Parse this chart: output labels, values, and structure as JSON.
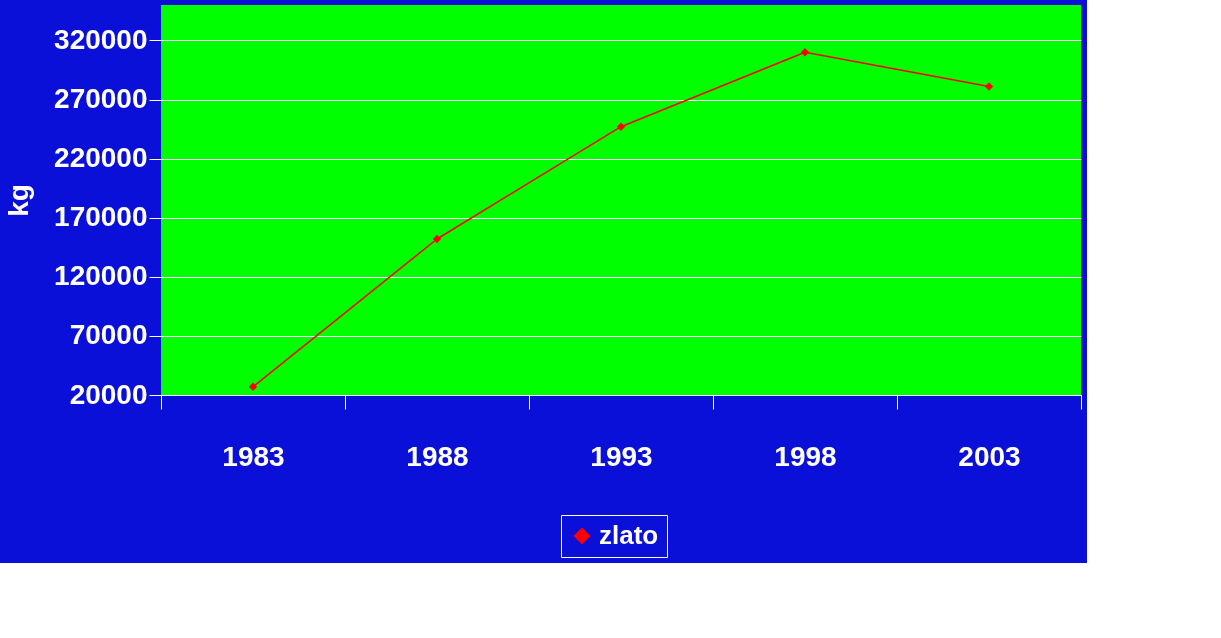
{
  "chart_data": {
    "type": "line",
    "ylabel": "kg",
    "categories": [
      "1983",
      "1988",
      "1993",
      "1998",
      "2003"
    ],
    "series": [
      {
        "name": "zlato",
        "color": "#ff0000",
        "values": [
          27000,
          152000,
          247000,
          310000,
          281000
        ]
      }
    ],
    "ylim": [
      20000,
      350000
    ],
    "yticks": [
      20000,
      70000,
      120000,
      170000,
      220000,
      270000,
      320000
    ],
    "grid": "y",
    "legend": "bottom",
    "marker": "diamond",
    "line_style": "solid"
  }
}
